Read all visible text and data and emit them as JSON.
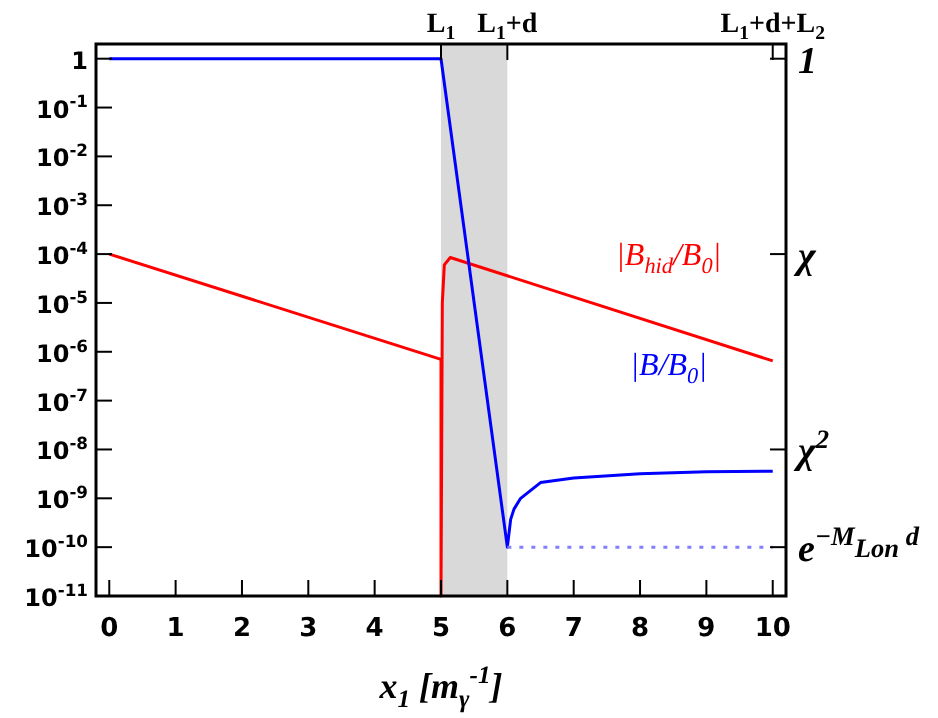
{
  "chart_data": {
    "type": "line",
    "xlabel": "x$_{1}$ [m$_{γ}$$^{-1}$]",
    "xlim": [
      -0.2,
      10.2
    ],
    "xticks": [
      0,
      1,
      2,
      3,
      4,
      5,
      6,
      7,
      8,
      9,
      10
    ],
    "ylim": [
      1e-11,
      2
    ],
    "log": "y",
    "yticks": [
      {
        "value": 1,
        "label": "1"
      },
      {
        "value": 0.1,
        "label": "10$^{-1}$"
      },
      {
        "value": 0.01,
        "label": "10$^{-2}$"
      },
      {
        "value": 0.001,
        "label": "10$^{-3}$"
      },
      {
        "value": 0.0001,
        "label": "10$^{-4}$"
      },
      {
        "value": 1e-05,
        "label": "10$^{-5}$"
      },
      {
        "value": 1e-06,
        "label": "10$^{-6}$"
      },
      {
        "value": 1e-07,
        "label": "10$^{-7}$"
      },
      {
        "value": 1e-08,
        "label": "10$^{-8}$"
      },
      {
        "value": 1e-09,
        "label": "10$^{-9}$"
      },
      {
        "value": 1e-10,
        "label": "10$^{-10}$"
      },
      {
        "value": 1e-11,
        "label": "10$^{-11}$"
      }
    ],
    "ref_lines": [
      {
        "axis": "x",
        "value": 5,
        "label": "L$_{1}$"
      },
      {
        "axis": "x",
        "value": 6,
        "label": "L$_{1}$+d"
      },
      {
        "axis": "x",
        "value": 10,
        "label": "L$_{1}$+d+L$_{2}$"
      },
      {
        "axis": "y",
        "value": 1,
        "label": "1"
      },
      {
        "axis": "y",
        "value": 0.0001,
        "label": "χ"
      },
      {
        "axis": "y",
        "value": 1e-08,
        "label": "χ$^{2}$"
      },
      {
        "axis": "y",
        "value": 1e-10,
        "label": "e$^{−M}$$_{Lon}$$^{ d}$"
      }
    ],
    "legend": false,
    "grid": false,
    "marker": "none",
    "bands": [
      {
        "axis": "x",
        "from": 5,
        "to": 6,
        "color": "#d9d9d9"
      }
    ],
    "series": [
      {
        "name": "|B$_{hid}$/B$_{0}$|",
        "color": "#ff0000",
        "x": [
          0,
          5,
          5,
          5.02,
          5.05,
          5.14,
          10
        ],
        "values": [
          0.0001,
          7e-07,
          1e-11,
          1e-05,
          6e-05,
          8.5e-05,
          6.5e-07
        ]
      },
      {
        "name": "|B/B$_{0}$|",
        "color": "#0000ff",
        "x": [
          0,
          5,
          6,
          6.05,
          6.1,
          6.2,
          6.5,
          7,
          8,
          9,
          10
        ],
        "values": [
          1,
          1,
          1e-10,
          3.7e-10,
          6e-10,
          1e-09,
          2.1e-09,
          2.6e-09,
          3.2e-09,
          3.5e-09,
          3.6e-09
        ]
      },
      {
        "color": "#8080ff",
        "line_style": "dotted",
        "x": [
          6,
          10
        ],
        "values": [
          1e-10,
          1e-10
        ]
      }
    ]
  }
}
